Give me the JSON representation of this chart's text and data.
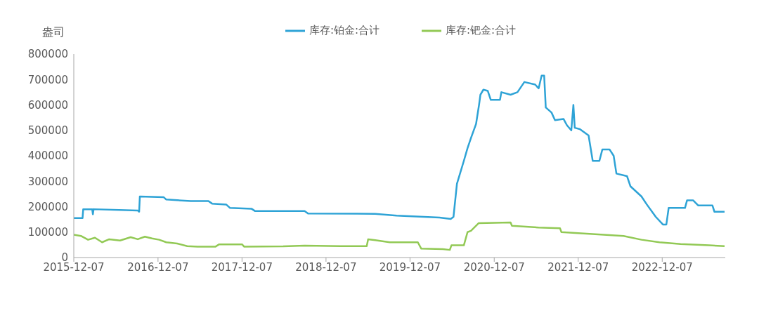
{
  "chart_data": {
    "type": "line",
    "ylabel": "盎司",
    "legend": "top",
    "grid": false,
    "xlim": [
      "2015-12-07",
      "2023-09-07"
    ],
    "xticks": [
      "2015-12-07",
      "2016-12-07",
      "2017-12-07",
      "2018-12-07",
      "2019-12-07",
      "2020-12-07",
      "2021-12-07",
      "2022-12-07"
    ],
    "ylim": [
      0,
      800000
    ],
    "yticks": [
      0,
      100000,
      200000,
      300000,
      400000,
      500000,
      600000,
      700000,
      800000
    ],
    "series": [
      {
        "name": "库存:铂金:合计",
        "color": "#2ea3d6",
        "x": [
          "2015-12-07",
          "2016-01-14",
          "2016-01-17",
          "2016-02-25",
          "2016-02-28",
          "2016-03-02",
          "2016-09-10",
          "2016-09-16",
          "2016-09-19",
          "2017-01-01",
          "2017-01-12",
          "2017-04-28",
          "2017-07-14",
          "2017-07-30",
          "2017-09-30",
          "2017-10-16",
          "2018-01-17",
          "2018-02-01",
          "2018-09-05",
          "2018-09-20",
          "2019-07-09",
          "2019-10-10",
          "2020-04-13",
          "2020-06-01",
          "2020-06-13",
          "2020-06-28",
          "2020-07-28",
          "2020-08-13",
          "2020-08-28",
          "2020-09-19",
          "2020-10-02",
          "2020-10-08",
          "2020-10-21",
          "2020-11-09",
          "2020-11-22",
          "2021-01-01",
          "2021-01-07",
          "2021-02-16",
          "2021-03-18",
          "2021-04-17",
          "2021-06-03",
          "2021-06-18",
          "2021-07-01",
          "2021-07-12",
          "2021-07-19",
          "2021-08-13",
          "2021-08-28",
          "2021-10-04",
          "2021-10-19",
          "2021-11-07",
          "2021-11-16",
          "2021-11-22",
          "2021-12-14",
          "2022-01-21",
          "2022-02-08",
          "2022-03-09",
          "2022-03-22",
          "2022-04-22",
          "2022-05-10",
          "2022-05-22",
          "2022-07-07",
          "2022-07-22",
          "2022-09-08",
          "2022-09-30",
          "2022-11-09",
          "2022-12-10",
          "2022-12-25",
          "2023-01-04",
          "2023-03-16",
          "2023-03-25",
          "2023-04-20",
          "2023-05-12",
          "2023-07-13",
          "2023-07-22",
          "2023-09-04"
        ],
        "values": [
          155000,
          155000,
          190000,
          190000,
          170000,
          190000,
          185000,
          180000,
          240000,
          237000,
          228000,
          222000,
          222000,
          212000,
          208000,
          195000,
          192000,
          183000,
          183000,
          173000,
          172000,
          165000,
          157000,
          152000,
          160000,
          290000,
          380000,
          430000,
          470000,
          525000,
          600000,
          640000,
          660000,
          655000,
          620000,
          620000,
          650000,
          640000,
          650000,
          690000,
          680000,
          665000,
          715000,
          715000,
          590000,
          570000,
          540000,
          545000,
          520000,
          500000,
          600000,
          510000,
          505000,
          480000,
          380000,
          380000,
          425000,
          425000,
          400000,
          330000,
          320000,
          280000,
          240000,
          210000,
          160000,
          130000,
          130000,
          195000,
          195000,
          225000,
          225000,
          205000,
          205000,
          180000,
          180000
        ]
      },
      {
        "name": "库存:钯金:合计",
        "color": "#92c955",
        "x": [
          "2015-12-07",
          "2016-01-07",
          "2016-02-07",
          "2016-03-08",
          "2016-04-08",
          "2016-05-09",
          "2016-06-25",
          "2016-08-10",
          "2016-09-10",
          "2016-10-11",
          "2016-11-11",
          "2016-12-12",
          "2017-01-12",
          "2017-02-28",
          "2017-04-13",
          "2017-05-28",
          "2017-08-14",
          "2017-08-30",
          "2017-12-07",
          "2017-12-16",
          "2018-06-04",
          "2018-09-05",
          "2019-02-07",
          "2019-06-02",
          "2019-06-08",
          "2019-07-09",
          "2019-09-10",
          "2020-01-10",
          "2020-01-25",
          "2020-04-28",
          "2020-05-28",
          "2020-06-04",
          "2020-07-28",
          "2020-08-13",
          "2020-08-28",
          "2020-09-30",
          "2021-02-16",
          "2021-02-22",
          "2021-06-18",
          "2021-09-19",
          "2021-09-25",
          "2021-12-19",
          "2022-06-22",
          "2022-09-08",
          "2022-11-25",
          "2023-02-25",
          "2023-06-28",
          "2023-09-04"
        ],
        "values": [
          90000,
          85000,
          70000,
          78000,
          60000,
          72000,
          67000,
          80000,
          72000,
          82000,
          75000,
          70000,
          60000,
          55000,
          45000,
          43000,
          43000,
          52000,
          52000,
          43000,
          44000,
          47000,
          45000,
          45000,
          72000,
          68000,
          60000,
          60000,
          35000,
          33000,
          30000,
          48000,
          48000,
          100000,
          105000,
          135000,
          138000,
          125000,
          118000,
          115000,
          100000,
          95000,
          85000,
          70000,
          60000,
          53000,
          48000,
          45000
        ]
      }
    ]
  }
}
